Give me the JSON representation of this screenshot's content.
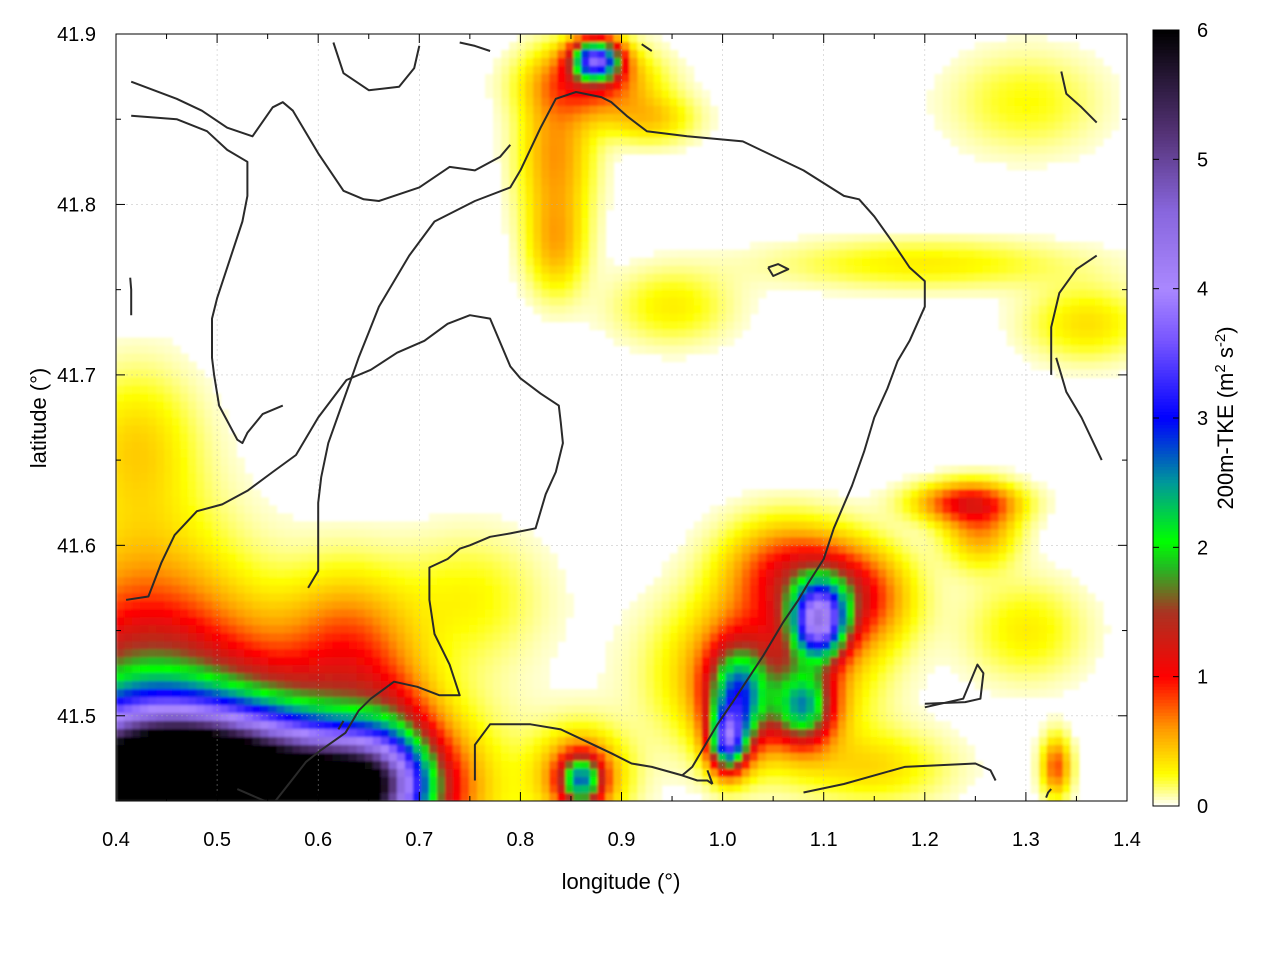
{
  "chart_data": {
    "type": "heatmap",
    "title": "",
    "xlabel": "longitude (°)",
    "ylabel": "latitude (°)",
    "xlim": [
      0.4,
      1.4
    ],
    "ylim": [
      41.45,
      41.9
    ],
    "x_ticks": [
      0.4,
      0.5,
      0.6,
      0.7,
      0.8,
      0.9,
      1.0,
      1.1,
      1.2,
      1.3,
      1.4
    ],
    "x_tick_labels": [
      "0.4",
      "0.5",
      "0.6",
      "0.7",
      "0.8",
      "0.9",
      "1.0",
      "1.1",
      "1.2",
      "1.3",
      "1.4"
    ],
    "y_ticks": [
      41.5,
      41.6,
      41.7,
      41.8,
      41.9
    ],
    "y_tick_labels": [
      "41.5",
      "41.6",
      "41.7",
      "41.8",
      "41.9"
    ],
    "grid": true,
    "colorbar": {
      "label_prefix": "200m-TKE (m",
      "label_sup1": "2",
      "label_mid": " s",
      "label_sup2": "-2",
      "label_suffix": ")",
      "range": [
        0,
        6
      ],
      "ticks": [
        0,
        1,
        2,
        3,
        4,
        5,
        6
      ],
      "tick_labels": [
        "0",
        "1",
        "2",
        "3",
        "4",
        "5",
        "6"
      ],
      "colormap": [
        [
          0.0,
          "#ffffff"
        ],
        [
          0.25,
          "#ffff00"
        ],
        [
          0.6,
          "#ff9900"
        ],
        [
          1.0,
          "#ff0000"
        ],
        [
          1.5,
          "#aa3322"
        ],
        [
          1.85,
          "#22bb22"
        ],
        [
          2.05,
          "#00ff00"
        ],
        [
          2.5,
          "#009999"
        ],
        [
          3.0,
          "#0000ff"
        ],
        [
          3.6,
          "#7755ff"
        ],
        [
          4.0,
          "#aa88ff"
        ],
        [
          4.6,
          "#8866dd"
        ],
        [
          5.2,
          "#553377"
        ],
        [
          6.0,
          "#000000"
        ]
      ]
    },
    "tke_features": [
      {
        "lon": 0.44,
        "lat": 41.455,
        "sx": 0.09,
        "sy": 0.03,
        "v": 5.3
      },
      {
        "lon": 0.53,
        "lat": 41.455,
        "sx": 0.1,
        "sy": 0.028,
        "v": 4.6
      },
      {
        "lon": 0.64,
        "lat": 41.458,
        "sx": 0.045,
        "sy": 0.02,
        "v": 3.4
      },
      {
        "lon": 0.46,
        "lat": 41.49,
        "sx": 0.13,
        "sy": 0.045,
        "v": 1.4
      },
      {
        "lon": 0.43,
        "lat": 41.53,
        "sx": 0.06,
        "sy": 0.06,
        "v": 0.7
      },
      {
        "lon": 0.63,
        "lat": 41.54,
        "sx": 0.04,
        "sy": 0.03,
        "v": 0.6
      },
      {
        "lon": 0.875,
        "lat": 41.885,
        "sx": 0.016,
        "sy": 0.008,
        "v": 3.2
      },
      {
        "lon": 0.87,
        "lat": 41.872,
        "sx": 0.04,
        "sy": 0.014,
        "v": 0.9
      },
      {
        "lon": 0.835,
        "lat": 41.83,
        "sx": 0.025,
        "sy": 0.03,
        "v": 0.6
      },
      {
        "lon": 0.835,
        "lat": 41.775,
        "sx": 0.02,
        "sy": 0.02,
        "v": 0.45
      },
      {
        "lon": 1.095,
        "lat": 41.555,
        "sx": 0.018,
        "sy": 0.015,
        "v": 3.1
      },
      {
        "lon": 1.12,
        "lat": 41.57,
        "sx": 0.04,
        "sy": 0.02,
        "v": 1.2
      },
      {
        "lon": 1.015,
        "lat": 41.51,
        "sx": 0.02,
        "sy": 0.02,
        "v": 2.1
      },
      {
        "lon": 1.005,
        "lat": 41.485,
        "sx": 0.012,
        "sy": 0.012,
        "v": 2.6
      },
      {
        "lon": 1.04,
        "lat": 41.525,
        "sx": 0.06,
        "sy": 0.03,
        "v": 1.0
      },
      {
        "lon": 1.08,
        "lat": 41.505,
        "sx": 0.02,
        "sy": 0.015,
        "v": 1.9
      },
      {
        "lon": 1.06,
        "lat": 41.585,
        "sx": 0.04,
        "sy": 0.02,
        "v": 0.8
      },
      {
        "lon": 0.86,
        "lat": 41.462,
        "sx": 0.014,
        "sy": 0.01,
        "v": 1.9
      },
      {
        "lon": 0.86,
        "lat": 41.465,
        "sx": 0.03,
        "sy": 0.018,
        "v": 0.8
      },
      {
        "lon": 1.24,
        "lat": 41.625,
        "sx": 0.035,
        "sy": 0.008,
        "v": 0.9
      },
      {
        "lon": 1.255,
        "lat": 41.61,
        "sx": 0.025,
        "sy": 0.015,
        "v": 0.6
      },
      {
        "lon": 1.33,
        "lat": 41.47,
        "sx": 0.01,
        "sy": 0.012,
        "v": 0.8
      },
      {
        "lon": 1.36,
        "lat": 41.73,
        "sx": 0.04,
        "sy": 0.015,
        "v": 0.35
      },
      {
        "lon": 1.2,
        "lat": 41.765,
        "sx": 0.1,
        "sy": 0.01,
        "v": 0.3
      },
      {
        "lon": 0.42,
        "lat": 41.66,
        "sx": 0.04,
        "sy": 0.03,
        "v": 0.35
      },
      {
        "lon": 0.67,
        "lat": 41.48,
        "sx": 0.03,
        "sy": 0.03,
        "v": 0.7
      },
      {
        "lon": 1.15,
        "lat": 41.47,
        "sx": 0.05,
        "sy": 0.015,
        "v": 0.35
      },
      {
        "lon": 0.93,
        "lat": 41.85,
        "sx": 0.03,
        "sy": 0.01,
        "v": 0.4
      },
      {
        "lon": 0.95,
        "lat": 41.74,
        "sx": 0.04,
        "sy": 0.015,
        "v": 0.3
      },
      {
        "lon": 1.3,
        "lat": 41.55,
        "sx": 0.04,
        "sy": 0.02,
        "v": 0.3
      },
      {
        "lon": 0.75,
        "lat": 41.57,
        "sx": 0.05,
        "sy": 0.025,
        "v": 0.25
      },
      {
        "lon": 1.3,
        "lat": 41.86,
        "sx": 0.05,
        "sy": 0.02,
        "v": 0.25
      }
    ],
    "contours": [
      [
        [
          0.415,
          41.872
        ],
        [
          0.46,
          41.862
        ],
        [
          0.485,
          41.855
        ],
        [
          0.51,
          41.845
        ],
        [
          0.535,
          41.84
        ],
        [
          0.555,
          41.857
        ],
        [
          0.565,
          41.86
        ],
        [
          0.575,
          41.855
        ],
        [
          0.6,
          41.83
        ],
        [
          0.625,
          41.808
        ],
        [
          0.645,
          41.803
        ],
        [
          0.66,
          41.802
        ],
        [
          0.7,
          41.81
        ],
        [
          0.73,
          41.822
        ],
        [
          0.755,
          41.82
        ],
        [
          0.78,
          41.828
        ],
        [
          0.79,
          41.835
        ]
      ],
      [
        [
          0.615,
          41.895
        ],
        [
          0.625,
          41.877
        ],
        [
          0.65,
          41.867
        ],
        [
          0.68,
          41.869
        ],
        [
          0.695,
          41.88
        ],
        [
          0.7,
          41.893
        ]
      ],
      [
        [
          0.415,
          41.852
        ],
        [
          0.46,
          41.85
        ],
        [
          0.49,
          41.843
        ],
        [
          0.51,
          41.832
        ],
        [
          0.53,
          41.825
        ],
        [
          0.53,
          41.805
        ],
        [
          0.525,
          41.79
        ],
        [
          0.5,
          41.745
        ],
        [
          0.495,
          41.733
        ],
        [
          0.495,
          41.71
        ],
        [
          0.497,
          41.7
        ],
        [
          0.502,
          41.682
        ],
        [
          0.52,
          41.662
        ],
        [
          0.525,
          41.66
        ],
        [
          0.53,
          41.666
        ],
        [
          0.545,
          41.677
        ],
        [
          0.565,
          41.682
        ]
      ],
      [
        [
          0.415,
          41.735
        ],
        [
          0.415,
          41.75
        ],
        [
          0.414,
          41.757
        ]
      ],
      [
        [
          0.41,
          41.568
        ],
        [
          0.432,
          41.57
        ],
        [
          0.445,
          41.59
        ],
        [
          0.458,
          41.606
        ],
        [
          0.48,
          41.62
        ],
        [
          0.505,
          41.624
        ],
        [
          0.53,
          41.632
        ],
        [
          0.555,
          41.643
        ],
        [
          0.578,
          41.653
        ],
        [
          0.6,
          41.675
        ],
        [
          0.628,
          41.697
        ],
        [
          0.652,
          41.703
        ],
        [
          0.678,
          41.713
        ],
        [
          0.705,
          41.72
        ],
        [
          0.728,
          41.73
        ],
        [
          0.75,
          41.735
        ],
        [
          0.77,
          41.733
        ],
        [
          0.79,
          41.705
        ],
        [
          0.8,
          41.698
        ],
        [
          0.82,
          41.689
        ],
        [
          0.838,
          41.682
        ],
        [
          0.84,
          41.672
        ],
        [
          0.842,
          41.66
        ],
        [
          0.835,
          41.643
        ],
        [
          0.825,
          41.63
        ],
        [
          0.815,
          41.61
        ],
        [
          0.79,
          41.607
        ],
        [
          0.77,
          41.605
        ],
        [
          0.75,
          41.6
        ],
        [
          0.74,
          41.598
        ],
        [
          0.728,
          41.592
        ],
        [
          0.71,
          41.587
        ],
        [
          0.71,
          41.568
        ],
        [
          0.715,
          41.548
        ],
        [
          0.73,
          41.53
        ],
        [
          0.74,
          41.512
        ],
        [
          0.72,
          41.512
        ],
        [
          0.698,
          41.517
        ],
        [
          0.675,
          41.52
        ],
        [
          0.652,
          41.51
        ],
        [
          0.64,
          41.503
        ],
        [
          0.627,
          41.49
        ],
        [
          0.603,
          41.48
        ],
        [
          0.588,
          41.473
        ],
        [
          0.575,
          41.463
        ],
        [
          0.555,
          41.448
        ],
        [
          0.52,
          41.457
        ]
      ],
      [
        [
          0.59,
          41.575
        ],
        [
          0.6,
          41.585
        ],
        [
          0.6,
          41.625
        ],
        [
          0.603,
          41.64
        ],
        [
          0.61,
          41.66
        ],
        [
          0.622,
          41.68
        ],
        [
          0.634,
          41.7
        ],
        [
          0.64,
          41.71
        ],
        [
          0.65,
          41.725
        ],
        [
          0.66,
          41.74
        ],
        [
          0.69,
          41.77
        ],
        [
          0.715,
          41.79
        ],
        [
          0.755,
          41.802
        ],
        [
          0.79,
          41.81
        ],
        [
          0.8,
          41.82
        ],
        [
          0.82,
          41.845
        ],
        [
          0.835,
          41.862
        ],
        [
          0.855,
          41.866
        ],
        [
          0.88,
          41.863
        ],
        [
          0.89,
          41.86
        ],
        [
          0.905,
          41.852
        ],
        [
          0.925,
          41.843
        ],
        [
          0.965,
          41.84
        ],
        [
          1.02,
          41.837
        ],
        [
          1.08,
          41.82
        ],
        [
          1.12,
          41.805
        ],
        [
          1.135,
          41.803
        ],
        [
          1.15,
          41.793
        ],
        [
          1.168,
          41.778
        ],
        [
          1.185,
          41.763
        ],
        [
          1.2,
          41.755
        ],
        [
          1.2,
          41.74
        ],
        [
          1.185,
          41.72
        ],
        [
          1.173,
          41.708
        ],
        [
          1.163,
          41.692
        ],
        [
          1.15,
          41.675
        ],
        [
          1.14,
          41.655
        ],
        [
          1.128,
          41.635
        ],
        [
          1.11,
          41.61
        ],
        [
          1.1,
          41.592
        ],
        [
          1.085,
          41.578
        ],
        [
          1.075,
          41.568
        ],
        [
          1.06,
          41.555
        ],
        [
          1.04,
          41.535
        ],
        [
          1.01,
          41.508
        ],
        [
          0.995,
          41.495
        ],
        [
          0.985,
          41.485
        ],
        [
          0.97,
          41.47
        ],
        [
          0.96,
          41.465
        ]
      ],
      [
        [
          0.62,
          41.492
        ],
        [
          0.625,
          41.497
        ]
      ],
      [
        [
          0.99,
          41.46
        ],
        [
          0.985,
          41.468
        ]
      ],
      [
        [
          1.375,
          41.65
        ],
        [
          1.355,
          41.675
        ],
        [
          1.34,
          41.69
        ],
        [
          1.335,
          41.7
        ],
        [
          1.33,
          41.71
        ]
      ],
      [
        [
          0.755,
          41.462
        ],
        [
          0.755,
          41.483
        ],
        [
          0.77,
          41.495
        ],
        [
          0.81,
          41.495
        ],
        [
          0.84,
          41.492
        ],
        [
          0.865,
          41.485
        ],
        [
          0.89,
          41.478
        ],
        [
          0.91,
          41.472
        ],
        [
          0.93,
          41.47
        ],
        [
          0.96,
          41.465
        ],
        [
          0.975,
          41.462
        ],
        [
          0.985,
          41.462
        ],
        [
          0.99,
          41.46
        ]
      ],
      [
        [
          1.08,
          41.455
        ],
        [
          1.12,
          41.46
        ],
        [
          1.18,
          41.47
        ],
        [
          1.25,
          41.472
        ],
        [
          1.265,
          41.468
        ],
        [
          1.27,
          41.462
        ]
      ],
      [
        [
          1.32,
          41.452
        ],
        [
          1.322,
          41.455
        ],
        [
          1.325,
          41.457
        ]
      ],
      [
        [
          1.2,
          41.507
        ],
        [
          1.24,
          41.508
        ],
        [
          1.255,
          41.51
        ],
        [
          1.258,
          41.525
        ],
        [
          1.252,
          41.53
        ],
        [
          1.238,
          41.51
        ],
        [
          1.2,
          41.505
        ]
      ],
      [
        [
          1.045,
          41.763
        ],
        [
          1.055,
          41.765
        ],
        [
          1.065,
          41.762
        ],
        [
          1.05,
          41.758
        ],
        [
          1.045,
          41.763
        ]
      ],
      [
        [
          0.74,
          41.895
        ],
        [
          0.755,
          41.893
        ],
        [
          0.77,
          41.89
        ]
      ],
      [
        [
          0.92,
          41.894
        ],
        [
          0.93,
          41.89
        ]
      ],
      [
        [
          1.335,
          41.878
        ],
        [
          1.34,
          41.865
        ],
        [
          1.355,
          41.857
        ],
        [
          1.37,
          41.848
        ]
      ],
      [
        [
          1.37,
          41.77
        ],
        [
          1.35,
          41.762
        ],
        [
          1.333,
          41.748
        ],
        [
          1.325,
          41.728
        ],
        [
          1.325,
          41.7
        ]
      ]
    ]
  }
}
